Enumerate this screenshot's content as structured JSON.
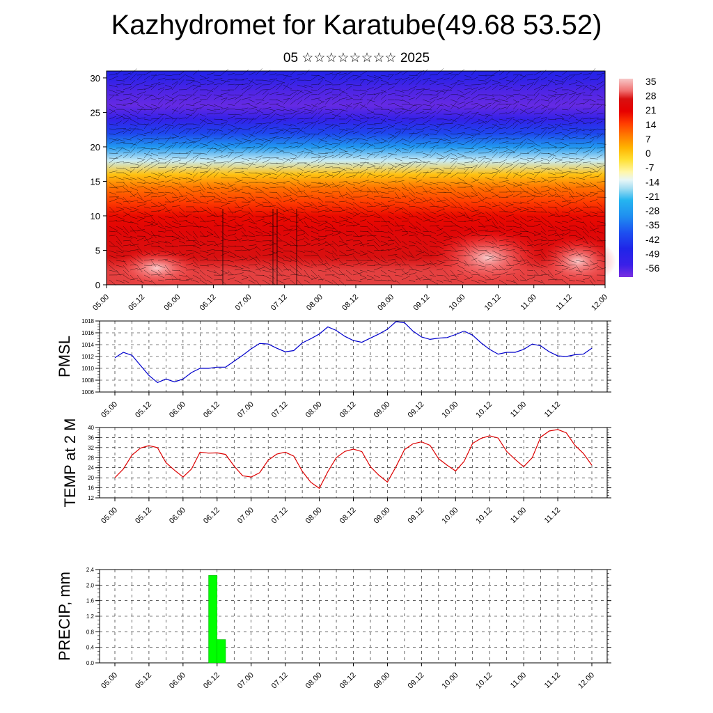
{
  "header": {
    "title": "Kazhydromet for Karatube(49.68 53.52)",
    "subtitle": "05 ☆☆☆☆☆☆☆☆ 2025"
  },
  "x_labels": [
    "05.00",
    "05.12",
    "06.00",
    "06.12",
    "07.00",
    "07.12",
    "08.00",
    "08.12",
    "09.00",
    "09.12",
    "10.00",
    "10.12",
    "11.00",
    "11.12",
    "12.00"
  ],
  "chart_data": [
    {
      "type": "heatmap",
      "title": "",
      "xlabel": "",
      "ylabel": "",
      "y_ticks": [
        0,
        5,
        10,
        15,
        20,
        25,
        30
      ],
      "ylim": [
        0,
        31
      ],
      "colorbar_ticks": [
        35,
        28,
        21,
        14,
        7,
        0,
        -7,
        -14,
        -21,
        -28,
        -35,
        -42,
        -49,
        -56
      ],
      "colorbar_range": [
        -60,
        38
      ],
      "profile_levels": [
        0,
        2,
        4,
        6,
        8,
        10,
        12,
        14,
        16,
        18,
        20,
        22,
        24,
        26,
        28,
        30,
        31
      ],
      "profile_values": [
        30,
        30,
        28,
        26,
        24,
        21,
        16,
        11,
        2,
        -14,
        -28,
        -40,
        -52,
        -58,
        -56,
        -50,
        -47
      ],
      "colors": {
        "hot": "#f7c0c0",
        "red": "#e60000",
        "orange": "#ff7a00",
        "yellow": "#ffe033",
        "light": "#d9f0f5",
        "cyan": "#20b0f0",
        "blue": "#1f25e8",
        "violet": "#7a30e0"
      }
    },
    {
      "type": "line",
      "ylabel": "PMSL",
      "y_ticks": [
        1006,
        1008,
        1010,
        1012,
        1014,
        1016,
        1018
      ],
      "ylim": [
        1006,
        1018
      ],
      "line_color": "#0000cc",
      "x": [
        0,
        3,
        6,
        9,
        12,
        15,
        18,
        21,
        24,
        27,
        30,
        33,
        36,
        39,
        42,
        45,
        48,
        51,
        54,
        57,
        60,
        63,
        66,
        69,
        72,
        75,
        78,
        81,
        84,
        87,
        90,
        93,
        96,
        99,
        102,
        105,
        108,
        111,
        114,
        117,
        120,
        123,
        126,
        129,
        132,
        135,
        138,
        141,
        144,
        147,
        150,
        153,
        156,
        159,
        162,
        165,
        168
      ],
      "values": [
        1011.8,
        1012.7,
        1012.2,
        1010.5,
        1008.8,
        1007.6,
        1008.2,
        1007.7,
        1008.2,
        1009.3,
        1010.0,
        1010.0,
        1010.2,
        1010.2,
        1011.2,
        1012.2,
        1013.3,
        1014.2,
        1014.1,
        1013.4,
        1012.8,
        1013.0,
        1014.3,
        1015.0,
        1015.8,
        1017.0,
        1016.4,
        1015.4,
        1014.7,
        1014.4,
        1015.1,
        1015.8,
        1016.6,
        1017.9,
        1017.7,
        1016.3,
        1015.3,
        1014.9,
        1015.1,
        1015.2,
        1015.7,
        1016.3,
        1015.6,
        1014.3,
        1013.2,
        1012.4,
        1012.7,
        1012.7,
        1013.2,
        1014.1,
        1013.8,
        1012.8,
        1012.1,
        1012.0,
        1012.3,
        1012.4,
        1013.4
      ]
    },
    {
      "type": "line",
      "ylabel": "TEMP at 2 M",
      "y_ticks": [
        12,
        16,
        20,
        24,
        28,
        32,
        36,
        40
      ],
      "ylim": [
        12,
        40
      ],
      "line_color": "#dd0000",
      "x": [
        0,
        3,
        6,
        9,
        12,
        15,
        18,
        21,
        24,
        27,
        30,
        33,
        36,
        39,
        42,
        45,
        48,
        51,
        54,
        57,
        60,
        63,
        66,
        69,
        72,
        75,
        78,
        81,
        84,
        87,
        90,
        93,
        96,
        99,
        102,
        105,
        108,
        111,
        114,
        117,
        120,
        123,
        126,
        129,
        132,
        135,
        138,
        141,
        144,
        147,
        150,
        153,
        156,
        159,
        162,
        165,
        168
      ],
      "values": [
        20,
        23.5,
        29,
        31.8,
        32.8,
        32,
        26,
        23,
        20.3,
        23.5,
        30.2,
        29.8,
        29.9,
        29.3,
        24.6,
        20.8,
        20.3,
        22,
        27,
        29.4,
        30.2,
        28.6,
        22.6,
        18.2,
        15.8,
        22.4,
        28,
        30.5,
        31.4,
        30.4,
        24.4,
        21,
        18.3,
        24.4,
        31.2,
        33.5,
        34.3,
        32.9,
        27.6,
        25,
        22.7,
        26.5,
        33.7,
        35.7,
        36.7,
        35.8,
        30.5,
        27.3,
        24.4,
        28,
        36.2,
        38.6,
        39.2,
        37.9,
        33,
        29.7,
        25
      ]
    },
    {
      "type": "bar",
      "ylabel": "PRECIP, mm",
      "y_ticks": [
        "0.0",
        "0.4",
        "0.8",
        "1.2",
        "1.6",
        "2.0",
        "2.4"
      ],
      "ylim": [
        0,
        2.4
      ],
      "bar_color": "#00ff00",
      "bars": [
        {
          "x_start": 33,
          "x_end": 36,
          "value": 2.25
        },
        {
          "x_start": 36,
          "x_end": 39,
          "value": 0.6
        }
      ]
    }
  ]
}
